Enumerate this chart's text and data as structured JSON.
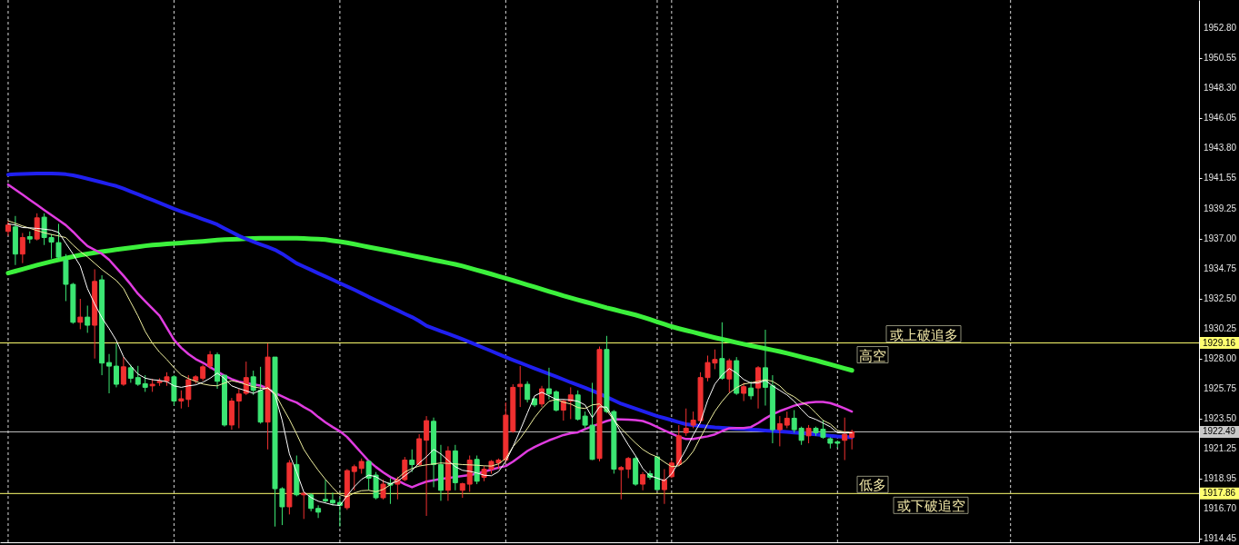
{
  "chart_data": {
    "type": "candlestick",
    "categories": [
      null,
      null,
      null,
      null,
      null,
      null,
      null,
      null,
      null,
      null,
      null,
      null,
      null,
      null,
      null,
      null,
      null,
      null,
      null,
      null,
      null,
      null,
      null,
      null,
      null,
      null,
      null,
      null,
      null,
      null,
      null,
      null,
      null,
      null,
      null,
      null,
      null,
      null,
      null,
      null,
      null,
      null,
      null,
      null,
      null,
      null,
      null,
      null,
      null,
      null,
      null,
      null,
      null,
      null,
      null,
      null,
      null,
      null,
      null,
      null,
      null,
      null,
      null,
      null,
      null,
      null,
      null,
      null,
      null,
      null,
      null,
      null,
      null,
      null,
      null,
      null,
      null,
      null,
      null,
      null,
      null,
      null,
      null,
      null,
      null,
      null,
      null,
      null,
      null,
      null,
      null,
      null,
      null,
      null,
      null,
      null,
      null,
      null,
      null,
      null,
      null,
      null,
      null,
      null,
      null,
      null,
      null,
      null,
      null,
      null,
      null,
      null,
      null,
      null,
      null,
      null,
      null,
      null
    ],
    "ohlc": [
      [
        1937.53,
        1938.3,
        1937.2,
        1938.01
      ],
      [
        1937.87,
        1938.69,
        1935.01,
        1935.83
      ],
      [
        1935.83,
        1937.41,
        1935.15,
        1937.07
      ],
      [
        1937.14,
        1937.53,
        1936.64,
        1936.96
      ],
      [
        1936.96,
        1938.89,
        1936.85,
        1938.55
      ],
      [
        1938.6,
        1938.89,
        1936.51,
        1937.07
      ],
      [
        1937.07,
        1937.33,
        1935.49,
        1936.73
      ],
      [
        1936.69,
        1938.1,
        1935.42,
        1935.6
      ],
      [
        1935.37,
        1935.83,
        1932.3,
        1933.56
      ],
      [
        1933.56,
        1933.67,
        1930.6,
        1930.71
      ],
      [
        1930.71,
        1932.47,
        1930.19,
        1931.1
      ],
      [
        1931.1,
        1931.96,
        1929.92,
        1930.49
      ],
      [
        1930.49,
        1934.69,
        1927.99,
        1933.78
      ],
      [
        1933.9,
        1934.24,
        1926.74,
        1927.65
      ],
      [
        1927.69,
        1928.33,
        1925.38,
        1927.42
      ],
      [
        1927.42,
        1929.12,
        1925.83,
        1926.06
      ],
      [
        1926.06,
        1928.1,
        1925.94,
        1927.37
      ],
      [
        1927.3,
        1927.53,
        1926.17,
        1926.51
      ],
      [
        1926.56,
        1927.44,
        1925.94,
        1926.06
      ],
      [
        1926.1,
        1926.74,
        1925.49,
        1925.83
      ],
      [
        1925.94,
        1926.47,
        1925.49,
        1926.06
      ],
      [
        1926.19,
        1926.51,
        1925.94,
        1926.28
      ],
      [
        1926.28,
        1926.96,
        1925.94,
        1926.62
      ],
      [
        1926.62,
        1926.74,
        1924.46,
        1924.8
      ],
      [
        1924.8,
        1925.6,
        1924.24,
        1924.97
      ],
      [
        1924.92,
        1926.74,
        1924.35,
        1926.4
      ],
      [
        1926.33,
        1926.74,
        1926.1,
        1926.62
      ],
      [
        1926.51,
        1927.53,
        1926.33,
        1927.37
      ],
      [
        1927.42,
        1928.55,
        1927.19,
        1928.28
      ],
      [
        1928.28,
        1928.44,
        1925.72,
        1926.28
      ],
      [
        1926.74,
        1926.74,
        1922.88,
        1923.0
      ],
      [
        1923.0,
        1925.03,
        1922.65,
        1924.8
      ],
      [
        1924.8,
        1925.72,
        1922.76,
        1925.33
      ],
      [
        1925.38,
        1927.76,
        1925.26,
        1926.56
      ],
      [
        1926.62,
        1927.08,
        1925.26,
        1925.6
      ],
      [
        1925.6,
        1927.37,
        1923.1,
        1923.22
      ],
      [
        1923.22,
        1929.12,
        1921.17,
        1928.1
      ],
      [
        1928.1,
        1928.1,
        1915.38,
        1918.22
      ],
      [
        1918.22,
        1918.33,
        1915.49,
        1916.86
      ],
      [
        1916.86,
        1920.37,
        1916.29,
        1920.15
      ],
      [
        1920.04,
        1920.71,
        1917.65,
        1917.76
      ],
      [
        1917.76,
        1918.0,
        1915.95,
        1917.88
      ],
      [
        1917.76,
        1917.88,
        1916.52,
        1916.74
      ],
      [
        1916.74,
        1916.97,
        1916.02,
        1916.46
      ],
      [
        1917.42,
        1918.9,
        1917.19,
        1917.31
      ],
      [
        1917.35,
        1917.92,
        1916.97,
        1917.15
      ],
      [
        1917.19,
        1917.53,
        1915.38,
        1916.97
      ],
      [
        1916.79,
        1919.69,
        1916.63,
        1919.58
      ],
      [
        1919.51,
        1920.03,
        1918.1,
        1919.87
      ],
      [
        1919.74,
        1920.49,
        1919.35,
        1920.27
      ],
      [
        1920.27,
        1920.37,
        1918.1,
        1919.01
      ],
      [
        1919.24,
        1919.47,
        1917.42,
        1917.54
      ],
      [
        1917.54,
        1918.9,
        1917.42,
        1918.56
      ],
      [
        1918.63,
        1919.01,
        1917.08,
        1918.49
      ],
      [
        1918.56,
        1919.12,
        1917.42,
        1918.9
      ],
      [
        1918.9,
        1920.6,
        1918.78,
        1920.37
      ],
      [
        1920.37,
        1921.17,
        1919.47,
        1920.03
      ],
      [
        1920.03,
        1922.31,
        1919.92,
        1921.97
      ],
      [
        1921.86,
        1923.67,
        1916.18,
        1923.33
      ],
      [
        1923.28,
        1923.56,
        1918.33,
        1920.03
      ],
      [
        1920.03,
        1921.51,
        1917.31,
        1918.1
      ],
      [
        1918.1,
        1921.4,
        1917.31,
        1921.06
      ],
      [
        1921.06,
        1921.51,
        1918.1,
        1918.67
      ],
      [
        1918.1,
        1918.67,
        1917.54,
        1918.6
      ],
      [
        1918.56,
        1920.71,
        1917.99,
        1920.37
      ],
      [
        1920.42,
        1920.71,
        1918.56,
        1918.78
      ],
      [
        1919.08,
        1919.92,
        1918.78,
        1919.69
      ],
      [
        1919.69,
        1920.37,
        1919.35,
        1920.27
      ],
      [
        1920.15,
        1920.49,
        1919.69,
        1920.37
      ],
      [
        1920.37,
        1924.69,
        1920.15,
        1923.74
      ],
      [
        1922.53,
        1926.06,
        1922.42,
        1925.83
      ],
      [
        1925.88,
        1927.42,
        1924.35,
        1926.06
      ],
      [
        1926.06,
        1926.28,
        1924.69,
        1924.92
      ],
      [
        1924.97,
        1925.03,
        1924.35,
        1924.51
      ],
      [
        1924.58,
        1925.94,
        1924.35,
        1925.72
      ],
      [
        1925.72,
        1927.3,
        1924.92,
        1925.33
      ],
      [
        1925.49,
        1925.6,
        1924.01,
        1924.12
      ],
      [
        1924.12,
        1924.92,
        1923.33,
        1924.8
      ],
      [
        1924.8,
        1925.83,
        1923.44,
        1925.26
      ],
      [
        1925.26,
        1925.6,
        1923.33,
        1923.44
      ],
      [
        1923.67,
        1924.01,
        1922.76,
        1922.99
      ],
      [
        1922.99,
        1926.17,
        1920.37,
        1920.42
      ],
      [
        1920.49,
        1928.89,
        1920.27,
        1928.67
      ],
      [
        1928.67,
        1929.69,
        1923.9,
        1924.01
      ],
      [
        1924.01,
        1924.12,
        1919.35,
        1919.69
      ],
      [
        1919.65,
        1919.92,
        1917.42,
        1919.81
      ],
      [
        1919.69,
        1920.6,
        1919.01,
        1920.49
      ],
      [
        1920.49,
        1920.6,
        1918.44,
        1918.56
      ],
      [
        1918.56,
        1919.47,
        1918.1,
        1919.28
      ],
      [
        1919.35,
        1919.58,
        1918.9,
        1919.08
      ],
      [
        1920.6,
        1920.71,
        1918.1,
        1918.15
      ],
      [
        1918.15,
        1919.69,
        1917.08,
        1918.9
      ],
      [
        1919.12,
        1920.37,
        1919.01,
        1920.15
      ],
      [
        1920.03,
        1922.99,
        1919.92,
        1922.19
      ],
      [
        1922.42,
        1924.24,
        1922.19,
        1922.76
      ],
      [
        1922.99,
        1924.01,
        1922.76,
        1923.37
      ],
      [
        1923.33,
        1926.96,
        1923.1,
        1926.56
      ],
      [
        1926.56,
        1928.21,
        1926.28,
        1927.69
      ],
      [
        1927.65,
        1928.67,
        1927.19,
        1927.92
      ],
      [
        1927.99,
        1930.71,
        1926.4,
        1926.51
      ],
      [
        1926.46,
        1927.99,
        1925.42,
        1927.83
      ],
      [
        1927.83,
        1928.1,
        1925.26,
        1925.38
      ],
      [
        1925.38,
        1926.17,
        1924.8,
        1925.88
      ],
      [
        1925.78,
        1926.28,
        1924.92,
        1925.19
      ],
      [
        1925.78,
        1927.42,
        1924.24,
        1927.3
      ],
      [
        1927.3,
        1930.15,
        1924.46,
        1925.83
      ],
      [
        1925.94,
        1926.74,
        1921.63,
        1922.65
      ],
      [
        1922.65,
        1923.67,
        1921.4,
        1923.1
      ],
      [
        1922.99,
        1924.01,
        1922.76,
        1923.51
      ],
      [
        1923.51,
        1924.12,
        1922.42,
        1922.65
      ],
      [
        1922.76,
        1922.88,
        1921.51,
        1921.85
      ],
      [
        1922.19,
        1923.0,
        1921.63,
        1922.76
      ],
      [
        1922.76,
        1922.88,
        1922.19,
        1922.42
      ],
      [
        1922.69,
        1923.37,
        1921.97,
        1922.08
      ],
      [
        1921.97,
        1922.08,
        1921.24,
        1921.63
      ],
      [
        1921.74,
        1921.85,
        1921.29,
        1921.63
      ],
      [
        1921.85,
        1923.56,
        1920.37,
        1922.31
      ],
      [
        1922.08,
        1922.65,
        1921.17,
        1922.49
      ]
    ],
    "colors": [
      "#f03030",
      "#3ce673",
      "#f03030",
      "#3ce673",
      "#f03030",
      "#3ce673",
      "#3ce673",
      "#3ce673",
      "#3ce673",
      "#3ce673",
      "#f03030",
      "#3ce673",
      "#f03030",
      "#3ce673",
      "#3ce673",
      "#3ce673",
      "#f03030",
      "#3ce673",
      "#3ce673",
      "#3ce673",
      "#f03030",
      "#f03030",
      "#f03030",
      "#3ce673",
      "#f03030",
      "#f03030",
      "#f03030",
      "#f03030",
      "#f03030",
      "#3ce673",
      "#3ce673",
      "#f03030",
      "#f03030",
      "#f03030",
      "#3ce673",
      "#3ce673",
      "#f03030",
      "#3ce673",
      "#3ce673",
      "#f03030",
      "#3ce673",
      "#f03030",
      "#3ce673",
      "#3ce673",
      "#3ce673",
      "#3ce673",
      "#3ce673",
      "#f03030",
      "#f03030",
      "#f03030",
      "#3ce673",
      "#3ce673",
      "#f03030",
      "#3ce673",
      "#f03030",
      "#f03030",
      "#3ce673",
      "#f03030",
      "#f03030",
      "#3ce673",
      "#3ce673",
      "#f03030",
      "#3ce673",
      "#f03030",
      "#f03030",
      "#3ce673",
      "#f03030",
      "#f03030",
      "#f03030",
      "#f03030",
      "#f03030",
      "#f03030",
      "#3ce673",
      "#3ce673",
      "#f03030",
      "#3ce673",
      "#3ce673",
      "#f03030",
      "#f03030",
      "#3ce673",
      "#3ce673",
      "#3ce673",
      "#f03030",
      "#3ce673",
      "#3ce673",
      "#f03030",
      "#f03030",
      "#3ce673",
      "#f03030",
      "#3ce673",
      "#3ce673",
      "#f03030",
      "#f03030",
      "#f03030",
      "#f03030",
      "#f03030",
      "#f03030",
      "#f03030",
      "#f03030",
      "#3ce673",
      "#f03030",
      "#3ce673",
      "#f03030",
      "#3ce673",
      "#f03030",
      "#3ce673",
      "#3ce673",
      "#f03030",
      "#f03030",
      "#3ce673",
      "#3ce673",
      "#f03030",
      "#3ce673",
      "#3ce673",
      "#3ce673",
      "#3ce673",
      "#f03030",
      "#f03030"
    ],
    "series": [
      {
        "type": "line",
        "color": "#3cf03c",
        "values": [
          1934.4,
          1934.55,
          1934.7,
          1934.85,
          1935.0,
          1935.14,
          1935.27,
          1935.4,
          1935.52,
          1935.64,
          1935.76,
          1935.85,
          1935.93,
          1936.01,
          1936.09,
          1936.17,
          1936.24,
          1936.31,
          1936.38,
          1936.45,
          1936.51,
          1936.55,
          1936.59,
          1936.63,
          1936.67,
          1936.71,
          1936.75,
          1936.79,
          1936.84,
          1936.88,
          1936.92,
          1936.94,
          1936.96,
          1936.98,
          1937.0,
          1937.02,
          1937.02,
          1937.02,
          1937.02,
          1937.02,
          1937.02,
          1937.0,
          1936.97,
          1936.95,
          1936.92,
          1936.84,
          1936.76,
          1936.68,
          1936.58,
          1936.47,
          1936.36,
          1936.26,
          1936.15,
          1936.05,
          1935.94,
          1935.83,
          1935.72,
          1935.61,
          1935.5,
          1935.39,
          1935.28,
          1935.17,
          1935.06,
          1934.93,
          1934.78,
          1934.63,
          1934.48,
          1934.33,
          1934.17,
          1934.01,
          1933.85,
          1933.69,
          1933.52,
          1933.36,
          1933.19,
          1933.03,
          1932.87,
          1932.7,
          1932.55,
          1932.4,
          1932.25,
          1932.1,
          1931.95,
          1931.8,
          1931.67,
          1931.53,
          1931.4,
          1931.26,
          1931.1,
          1930.92,
          1930.74,
          1930.57,
          1930.39,
          1930.24,
          1930.1,
          1929.97,
          1929.83,
          1929.69,
          1929.56,
          1929.44,
          1929.32,
          1929.19,
          1929.07,
          1928.96,
          1928.85,
          1928.74,
          1928.63,
          1928.52,
          1928.39,
          1928.25,
          1928.12,
          1927.98,
          1927.85,
          1927.7,
          1927.55,
          1927.4,
          1927.25,
          1927.1
        ]
      },
      {
        "type": "line",
        "color": "#2020f0",
        "values": [
          1941.8,
          1941.82,
          1941.85,
          1941.87,
          1941.88,
          1941.88,
          1941.88,
          1941.86,
          1941.82,
          1941.74,
          1941.62,
          1941.49,
          1941.35,
          1941.21,
          1941.07,
          1940.94,
          1940.74,
          1940.53,
          1940.32,
          1940.1,
          1939.89,
          1939.67,
          1939.45,
          1939.23,
          1939.03,
          1938.84,
          1938.65,
          1938.45,
          1938.25,
          1938.05,
          1937.76,
          1937.48,
          1937.2,
          1936.97,
          1936.76,
          1936.56,
          1936.36,
          1936.15,
          1935.85,
          1935.5,
          1935.14,
          1934.89,
          1934.64,
          1934.39,
          1934.15,
          1933.9,
          1933.65,
          1933.4,
          1933.15,
          1932.89,
          1932.62,
          1932.37,
          1932.12,
          1931.86,
          1931.61,
          1931.35,
          1931.1,
          1930.8,
          1930.45,
          1930.25,
          1930.05,
          1929.85,
          1929.65,
          1929.44,
          1929.23,
          1929.0,
          1928.77,
          1928.55,
          1928.32,
          1928.1,
          1927.88,
          1927.67,
          1927.46,
          1927.25,
          1927.05,
          1926.84,
          1926.63,
          1926.42,
          1926.2,
          1926.0,
          1925.8,
          1925.58,
          1925.35,
          1925.1,
          1924.85,
          1924.6,
          1924.42,
          1924.23,
          1924.04,
          1923.85,
          1923.67,
          1923.52,
          1923.37,
          1923.21,
          1923.06,
          1922.99,
          1922.93,
          1922.87,
          1922.82,
          1922.79,
          1922.76,
          1922.73,
          1922.7,
          1922.66,
          1922.63,
          1922.59,
          1922.55,
          1922.51,
          1922.48,
          1922.44,
          1922.4,
          1922.35,
          1922.3,
          1922.25,
          1922.2,
          1922.15,
          1922.11,
          1922.08
        ]
      },
      {
        "type": "line",
        "color": "#e03ce0",
        "values": [
          1941.05,
          1940.67,
          1940.29,
          1939.9,
          1939.52,
          1939.14,
          1938.76,
          1938.38,
          1938.0,
          1937.5,
          1936.95,
          1936.43,
          1936.15,
          1935.85,
          1935.4,
          1934.8,
          1934.2,
          1933.55,
          1932.85,
          1932.3,
          1931.75,
          1931.2,
          1930.3,
          1929.4,
          1928.8,
          1928.33,
          1927.95,
          1927.68,
          1927.35,
          1927.02,
          1926.7,
          1926.45,
          1926.26,
          1926.15,
          1926.05,
          1925.96,
          1925.75,
          1925.4,
          1925.15,
          1924.9,
          1924.69,
          1924.35,
          1924.05,
          1923.6,
          1923.2,
          1922.85,
          1922.53,
          1922.1,
          1921.5,
          1920.9,
          1920.3,
          1919.85,
          1919.45,
          1919.1,
          1918.85,
          1918.55,
          1918.33,
          1918.55,
          1918.75,
          1918.85,
          1918.95,
          1919.02,
          1919.1,
          1919.17,
          1919.24,
          1919.35,
          1919.5,
          1919.65,
          1919.8,
          1919.92,
          1920.25,
          1920.65,
          1921.05,
          1921.35,
          1921.6,
          1921.85,
          1922.05,
          1922.25,
          1922.38,
          1922.45,
          1922.7,
          1922.9,
          1923.1,
          1923.3,
          1923.44,
          1923.42,
          1923.4,
          1923.37,
          1923.3,
          1923.1,
          1922.85,
          1922.6,
          1922.35,
          1922.12,
          1921.95,
          1921.95,
          1922.05,
          1922.15,
          1922.3,
          1922.55,
          1922.76,
          1922.78,
          1922.78,
          1922.85,
          1923.15,
          1923.5,
          1923.8,
          1924.05,
          1924.25,
          1924.45,
          1924.58,
          1924.68,
          1924.74,
          1924.73,
          1924.65,
          1924.46,
          1924.25,
          1924.01
        ]
      },
      {
        "type": "line",
        "color": "#f0f0a0",
        "values": [
          1938.33,
          1938.14,
          1937.94,
          1937.77,
          1937.6,
          1937.43,
          1937.3,
          1937.19,
          1937.07,
          1936.51,
          1936.03,
          1935.62,
          1935.14,
          1934.67,
          1934.26,
          1933.85,
          1933.24,
          1932.21,
          1931.19,
          1930.03,
          1929.15,
          1928.46,
          1927.92,
          1927.3,
          1926.76,
          1926.49,
          1926.28,
          1926.08,
          1925.98,
          1925.94,
          1926.15,
          1926.33,
          1926.21,
          1926.04,
          1925.87,
          1925.77,
          1925.74,
          1925.4,
          1924.37,
          1923.42,
          1922.33,
          1921.17,
          1920.35,
          1919.6,
          1918.92,
          1918.31,
          1917.76,
          1917.62,
          1917.9,
          1918.07,
          1918.1,
          1917.99,
          1918.17,
          1918.51,
          1918.99,
          1919.47,
          1919.74,
          1919.92,
          1920.01,
          1920.08,
          1920.15,
          1920.12,
          1920.08,
          1920.03,
          1920.01,
          1919.98,
          1919.94,
          1919.92,
          1920.08,
          1920.49,
          1921.37,
          1921.99,
          1922.74,
          1923.56,
          1924.24,
          1924.78,
          1924.92,
          1924.71,
          1924.58,
          1924.31,
          1924.24,
          1924.51,
          1924.58,
          1924.1,
          1923.35,
          1922.74,
          1922.19,
          1921.65,
          1921.17,
          1920.83,
          1920.6,
          1920.22,
          1919.87,
          1919.94,
          1920.35,
          1921.03,
          1922.06,
          1923.08,
          1924.03,
          1924.78,
          1925.4,
          1925.81,
          1926.08,
          1926.17,
          1926.28,
          1926.4,
          1926.28,
          1925.94,
          1925.4,
          1925.12,
          1924.71,
          1924.44,
          1923.9,
          1923.35,
          1923.08,
          1922.6,
          1922.46,
          1922.42
        ]
      },
      {
        "type": "line",
        "color": "#ffffff",
        "values": [
          1938.1,
          1938.01,
          1937.82,
          1937.8,
          1937.76,
          1937.7,
          1937.63,
          1937.46,
          1936.64,
          1935.83,
          1934.94,
          1933.24,
          1932.08,
          1931.05,
          1930.24,
          1929.35,
          1928.12,
          1927.44,
          1926.83,
          1926.52,
          1926.4,
          1926.35,
          1926.25,
          1925.94,
          1925.83,
          1925.94,
          1926.01,
          1926.21,
          1926.51,
          1926.9,
          1926.49,
          1925.94,
          1925.74,
          1925.57,
          1925.38,
          1925.6,
          1925.81,
          1925.26,
          1923.35,
          1920.83,
          1919.47,
          1917.97,
          1917.56,
          1917.28,
          1917.15,
          1917.01,
          1916.96,
          1917.69,
          1918.37,
          1918.92,
          1919.24,
          1919.12,
          1918.78,
          1918.58,
          1918.78,
          1919.19,
          1919.6,
          1920.15,
          1920.62,
          1921.17,
          1920.83,
          1920.35,
          1919.87,
          1919.6,
          1919.53,
          1919.4,
          1919.23,
          1919.19,
          1919.5,
          1920.28,
          1921.37,
          1922.6,
          1923.9,
          1925.19,
          1925.46,
          1925.19,
          1924.92,
          1924.92,
          1924.88,
          1924.78,
          1924.51,
          1923.56,
          1924.37,
          1924.34,
          1923.42,
          1922.4,
          1921.51,
          1920.69,
          1919.74,
          1919.19,
          1919.01,
          1918.82,
          1919.33,
          1920.22,
          1921.17,
          1922.26,
          1923.21,
          1924.85,
          1926.08,
          1926.76,
          1927.24,
          1926.9,
          1926.42,
          1926.15,
          1926.15,
          1926.35,
          1925.94,
          1925.6,
          1925.26,
          1924.78,
          1924.17,
          1923.62,
          1923.42,
          1923.15,
          1922.87,
          1922.42,
          1922.4,
          1922.42
        ]
      }
    ],
    "ylim": [
      1914.2,
      1954.9
    ],
    "yticks": [
      {
        "value": 1914.45,
        "label": "1914.45"
      },
      {
        "value": 1916.7,
        "label": "1916.70"
      },
      {
        "value": 1918.95,
        "label": "1918.95"
      },
      {
        "value": 1921.25,
        "label": "1921.25"
      },
      {
        "value": 1923.5,
        "label": "1923.50"
      },
      {
        "value": 1925.75,
        "label": "1925.75"
      },
      {
        "value": 1928.0,
        "label": "1928.00"
      },
      {
        "value": 1930.25,
        "label": "1930.25"
      },
      {
        "value": 1932.5,
        "label": "1932.50"
      },
      {
        "value": 1934.75,
        "label": "1934.75"
      },
      {
        "value": 1937.0,
        "label": "1937.00"
      },
      {
        "value": 1939.25,
        "label": "1939.25"
      },
      {
        "value": 1941.55,
        "label": "1941.55"
      },
      {
        "value": 1943.8,
        "label": "1943.80"
      },
      {
        "value": 1946.05,
        "label": "1946.05"
      },
      {
        "value": 1948.3,
        "label": "1948.30"
      },
      {
        "value": 1950.55,
        "label": "1950.55"
      },
      {
        "value": 1952.8,
        "label": "1952.80"
      }
    ],
    "tick_labels": "y",
    "grid": "x",
    "ref_lines": [
      {
        "axis": "y",
        "value": 1929.16,
        "label": "1929.16",
        "color": "#ffff70"
      },
      {
        "axis": "y",
        "value": 1922.49,
        "label": "1922.49",
        "color": "#c8c8c8"
      },
      {
        "axis": "y",
        "value": 1917.86,
        "label": "1917.86",
        "color": "#ffff70"
      }
    ],
    "annotations": [
      {
        "text": "或上破追多",
        "y": 1929.16
      },
      {
        "text": "高空",
        "y": 1929.16
      },
      {
        "text": "低多",
        "y": 1917.86
      },
      {
        "text": "或下破追空",
        "y": 1917.86
      }
    ]
  }
}
